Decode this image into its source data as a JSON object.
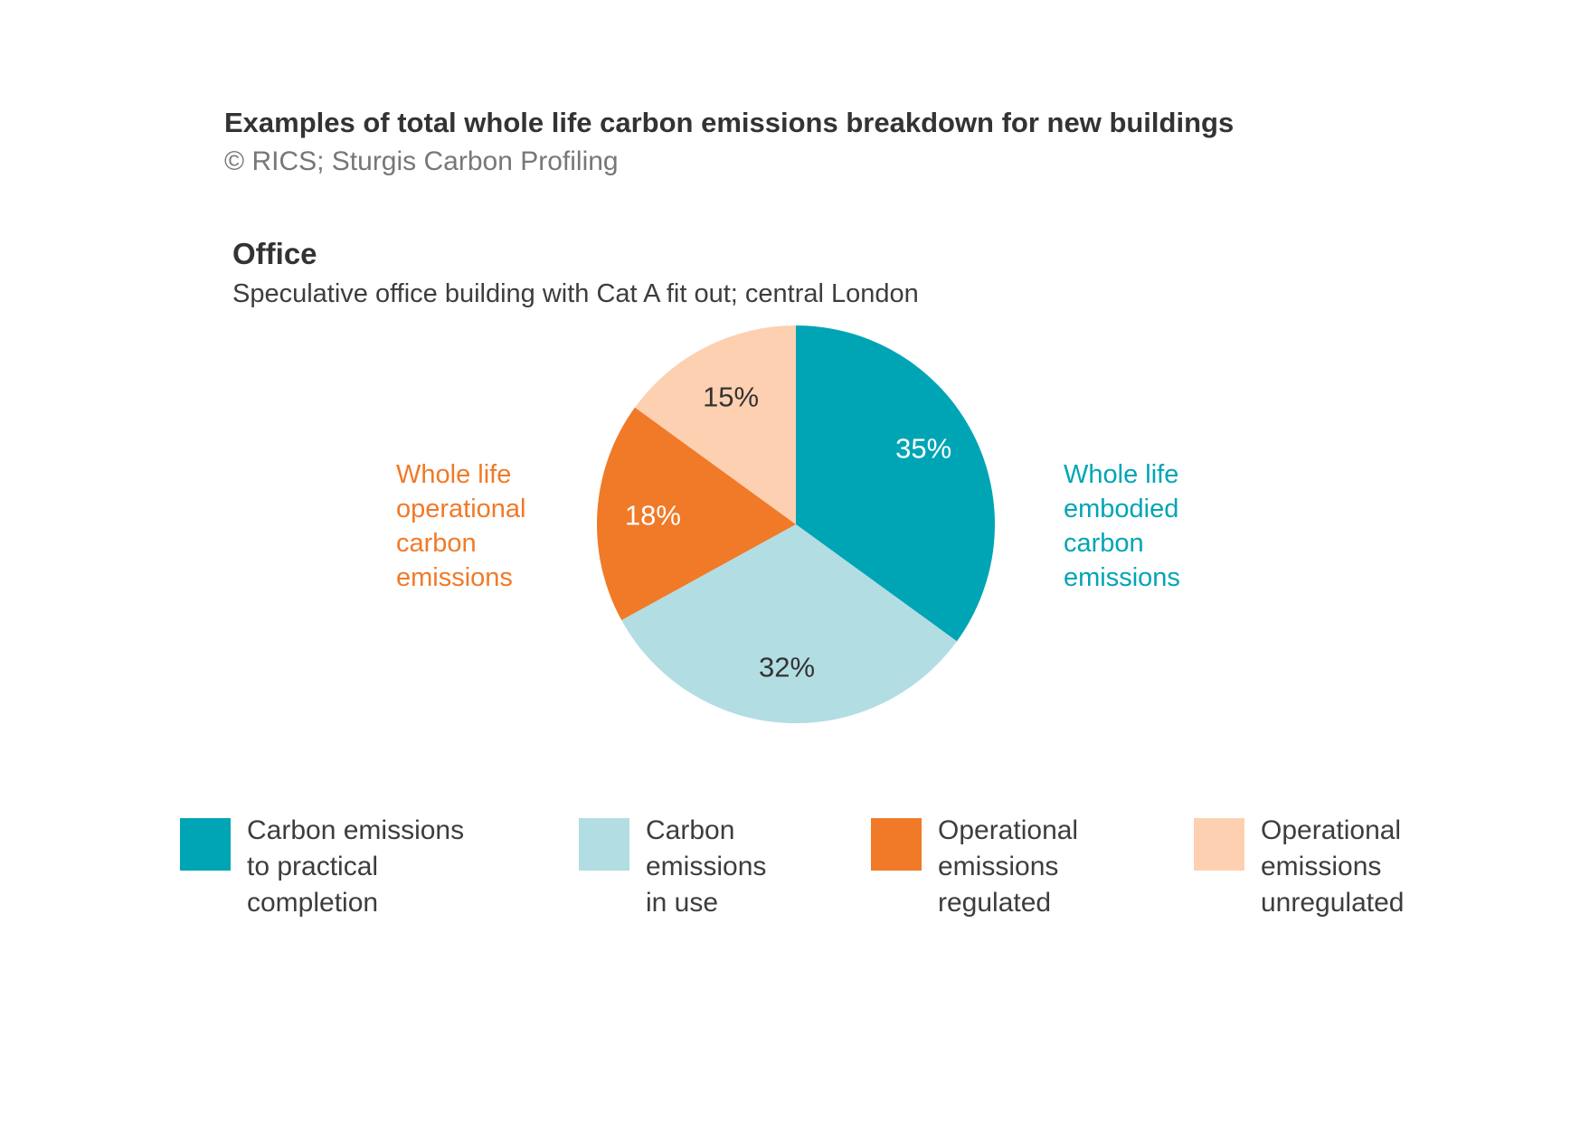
{
  "header": {
    "title": "Examples of total whole life carbon emissions breakdown for new buildings",
    "credit": "© RICS; Sturgis Carbon Profiling"
  },
  "panel": {
    "title": "Office",
    "subtitle": "Speculative office building with Cat A fit out; central London"
  },
  "group_labels": {
    "operational": {
      "lines": [
        "Whole life",
        "operational",
        "carbon",
        "emissions"
      ],
      "color": "#f07a28"
    },
    "embodied": {
      "lines": [
        "Whole life",
        "embodied",
        "carbon",
        "emissions"
      ],
      "color": "#00a5b5"
    }
  },
  "legend": [
    {
      "lines": [
        "Carbon emissions",
        "to practical",
        "completion"
      ],
      "color": "#00a5b5"
    },
    {
      "lines": [
        "Carbon",
        "emissions",
        "in use"
      ],
      "color": "#b2dde3"
    },
    {
      "lines": [
        "Operational",
        "emissions",
        "regulated"
      ],
      "color": "#f07a28"
    },
    {
      "lines": [
        "Operational",
        "emissions",
        "unregulated"
      ],
      "color": "#fdd0b1"
    }
  ],
  "chart_data": {
    "type": "pie",
    "title": "Office",
    "subtitle": "Speculative office building with Cat A fit out; central London",
    "start_angle_deg": 0,
    "direction": "clockwise",
    "slices": [
      {
        "label": "Carbon emissions to practical completion",
        "value": 35,
        "display": "35%",
        "color": "#00a5b5",
        "label_color": "#ffffff"
      },
      {
        "label": "Carbon emissions in use",
        "value": 32,
        "display": "32%",
        "color": "#b2dde3",
        "label_color": "#333333"
      },
      {
        "label": "Operational emissions regulated",
        "value": 18,
        "display": "18%",
        "color": "#f07a28",
        "label_color": "#ffffff"
      },
      {
        "label": "Operational emissions unregulated",
        "value": 15,
        "display": "15%",
        "color": "#fdd0b1",
        "label_color": "#333333"
      }
    ],
    "legend_position": "bottom"
  }
}
